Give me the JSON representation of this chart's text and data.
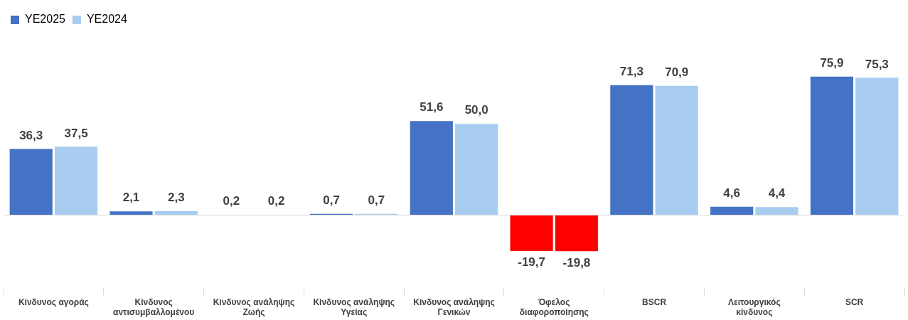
{
  "chart_data": {
    "type": "bar",
    "categories": [
      "Κίνδυνος αγοράς",
      "Κίνδυνος αντισυμβαλλομένου",
      "Κίνδυνος ανάληψης Ζωής",
      "Κίνδυνος ανάληψης Υγείας",
      "Κίνδυνος ανάληψης Γενικών",
      "Όφελος διαφοροποίησης",
      "BSCR",
      "Λειτουργικός κίνδυνος",
      "SCR"
    ],
    "series": [
      {
        "name": "YE2025",
        "color": "#4472c4",
        "colors": [
          "#4472c4",
          "#4472c4",
          "#4472c4",
          "#4472c4",
          "#4472c4",
          "#ff0000",
          "#4472c4",
          "#4472c4",
          "#4472c4"
        ],
        "values": [
          36.3,
          2.1,
          0.2,
          0.7,
          51.6,
          -19.7,
          71.3,
          4.6,
          75.9
        ],
        "value_labels": [
          "36,3",
          "2,1",
          "0,2",
          "0,7",
          "51,6",
          "-19,7",
          "71,3",
          "4,6",
          "75,9"
        ]
      },
      {
        "name": "YE2024",
        "color": "#a9cdf0",
        "colors": [
          "#a9cdf0",
          "#a9cdf0",
          "#a9cdf0",
          "#a9cdf0",
          "#a9cdf0",
          "#ff0000",
          "#a9cdf0",
          "#a9cdf0",
          "#a9cdf0"
        ],
        "values": [
          37.5,
          2.3,
          0.2,
          0.7,
          50.0,
          -19.8,
          70.9,
          4.4,
          75.3
        ],
        "value_labels": [
          "37,5",
          "2,3",
          "0,2",
          "0,7",
          "50,0",
          "-19,8",
          "70,9",
          "4,4",
          "75,3"
        ]
      }
    ],
    "legend": "top left",
    "grid": false
  }
}
